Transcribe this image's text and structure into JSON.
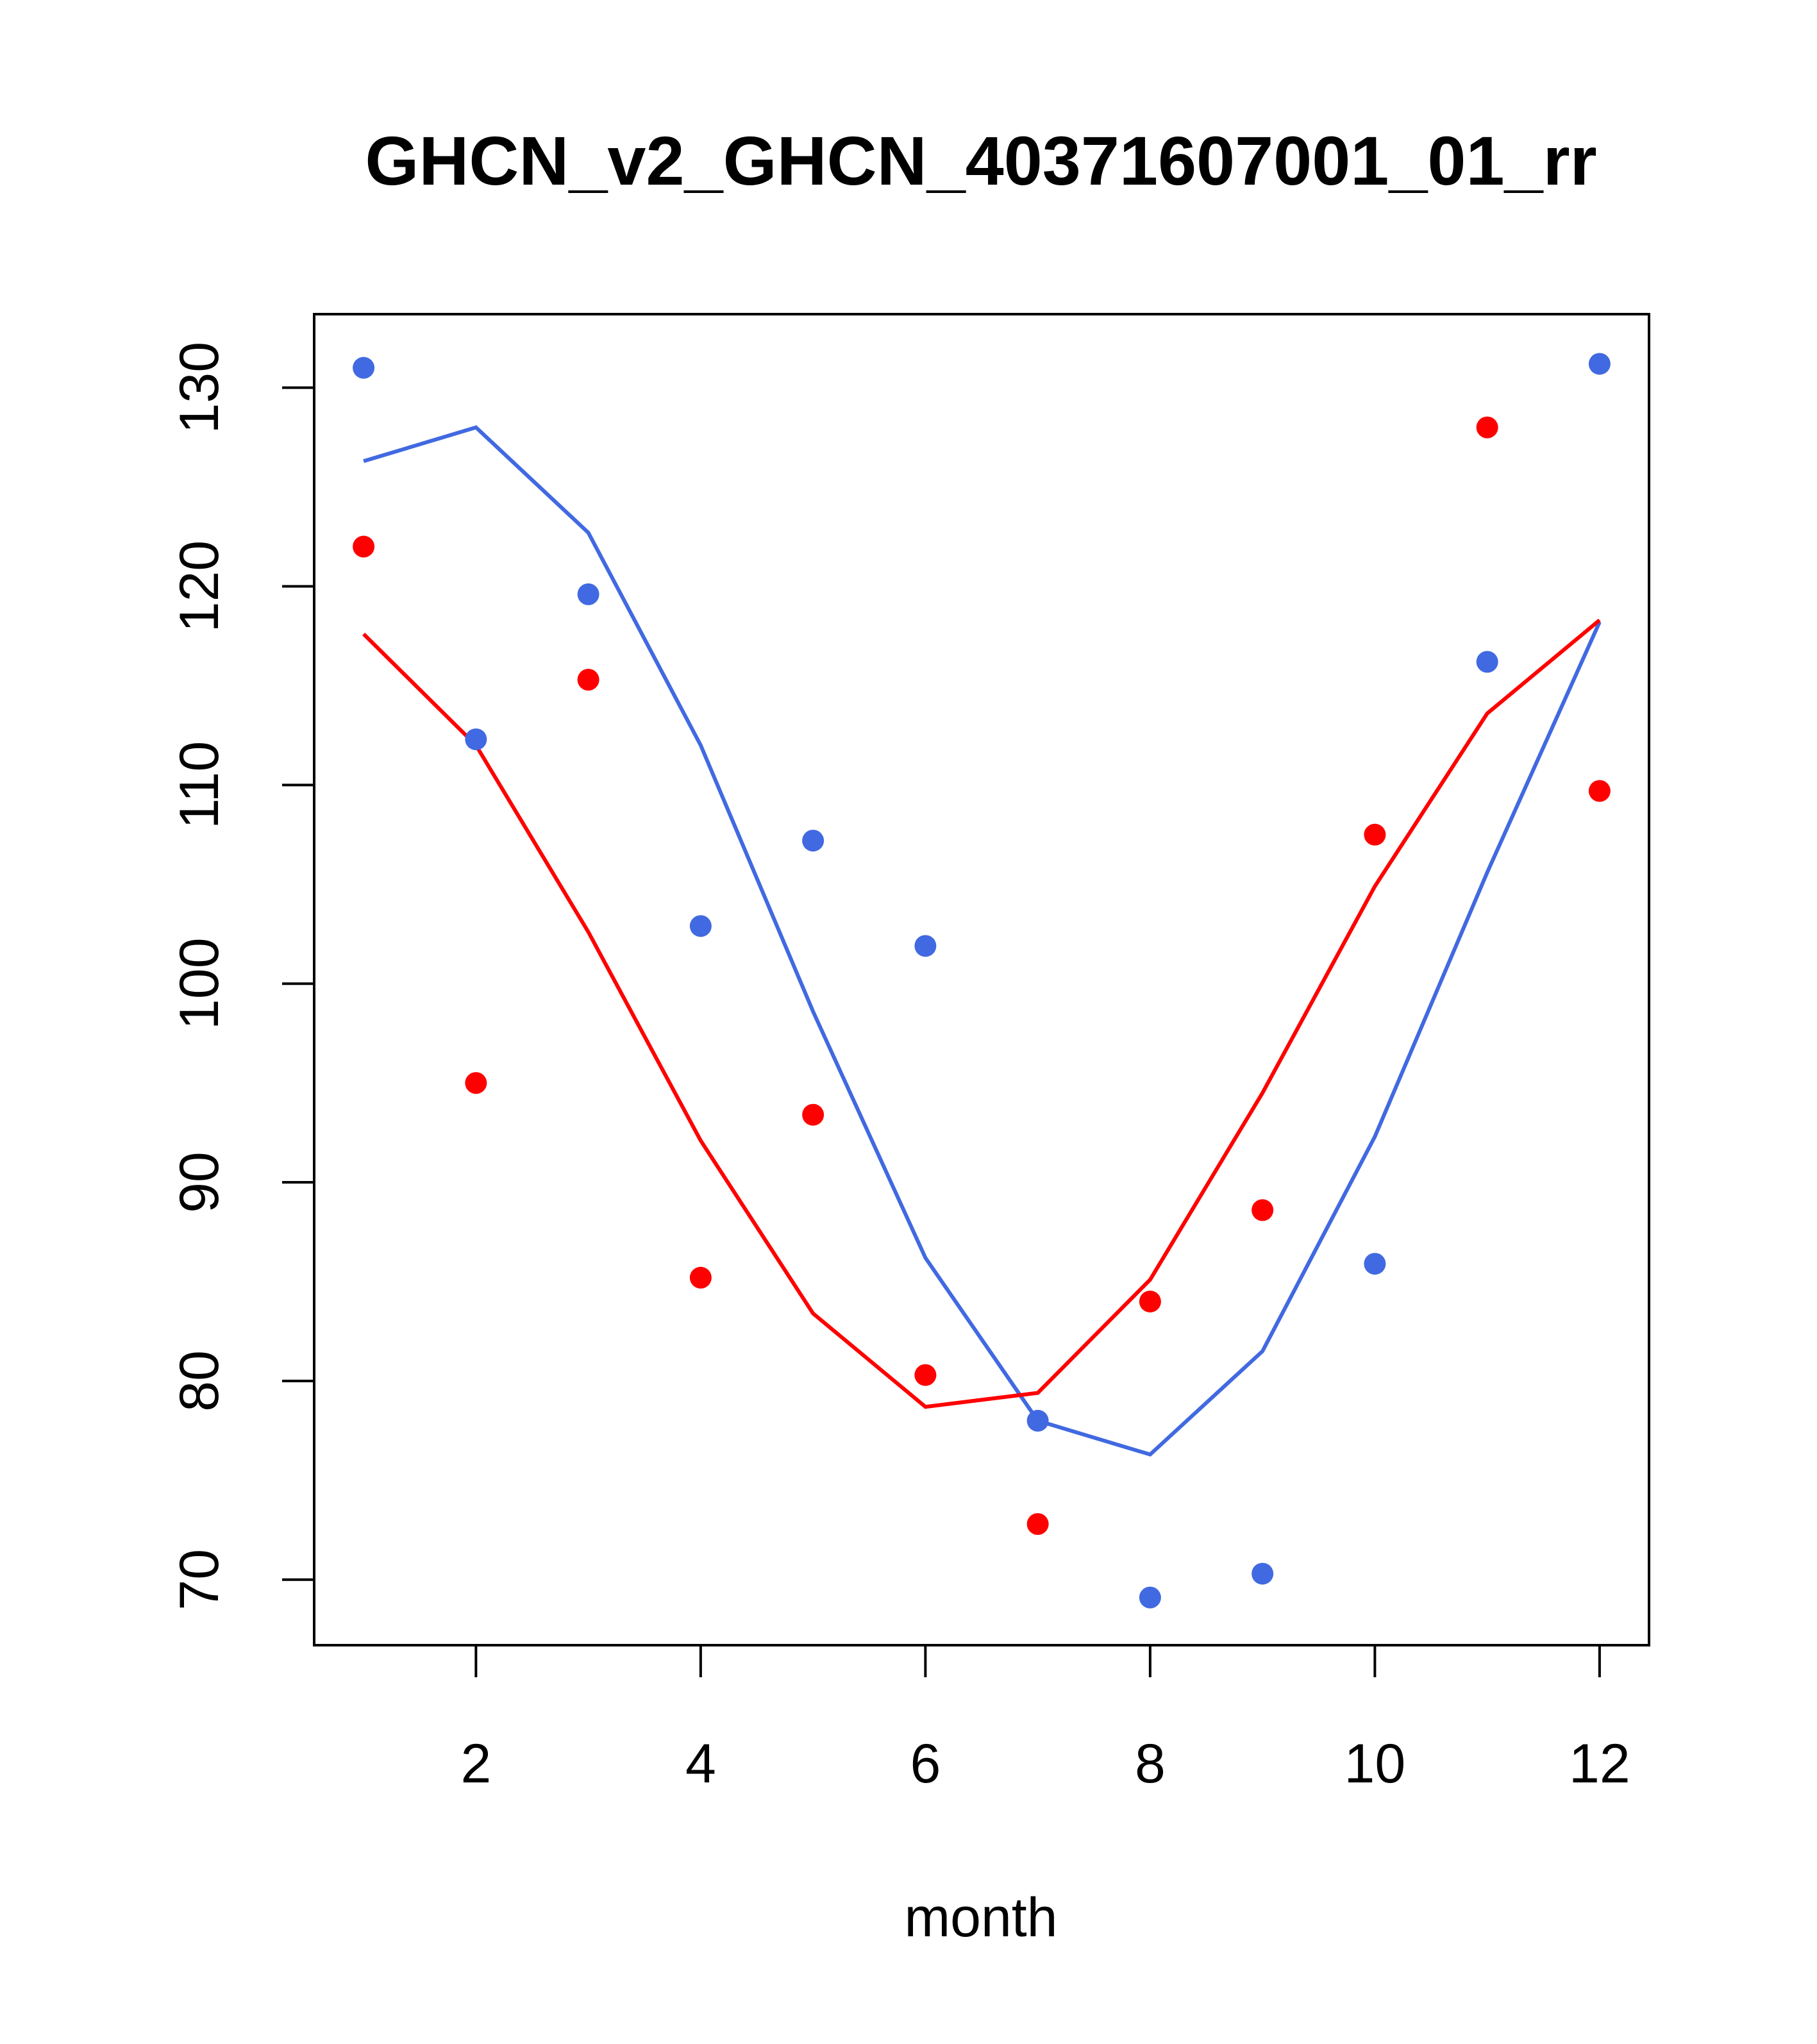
{
  "chart_data": {
    "type": "scatter",
    "title": "GHCN_v2_GHCN_40371607001_01_rr",
    "xlabel": "month",
    "ylabel": "",
    "xlim": [
      0.56,
      12.44
    ],
    "ylim": [
      66.7,
      133.7
    ],
    "x_ticks": [
      2,
      4,
      6,
      8,
      10,
      12
    ],
    "y_ticks": [
      70,
      80,
      90,
      100,
      110,
      120,
      130
    ],
    "grid": false,
    "legend": "none",
    "x": [
      1,
      2,
      3,
      4,
      5,
      6,
      7,
      8,
      9,
      10,
      11,
      12
    ],
    "series": [
      {
        "color": "#4169e1",
        "points": [
          131.0,
          112.3,
          119.6,
          102.9,
          107.2,
          101.9,
          78.0,
          69.1,
          70.3,
          85.9,
          116.2,
          131.2
        ],
        "line": [
          126.3,
          128.0,
          122.7,
          112.0,
          98.6,
          86.2,
          78.0,
          76.3,
          81.5,
          92.3,
          105.6,
          118.2
        ]
      },
      {
        "color": "#ff0000",
        "points": [
          122.0,
          95.0,
          115.3,
          85.2,
          93.4,
          80.3,
          72.8,
          84.0,
          88.6,
          107.5,
          128.0,
          109.7
        ],
        "line": [
          117.6,
          112.0,
          102.6,
          92.1,
          83.4,
          78.7,
          79.4,
          85.1,
          94.5,
          104.9,
          113.6,
          118.3
        ]
      }
    ]
  }
}
